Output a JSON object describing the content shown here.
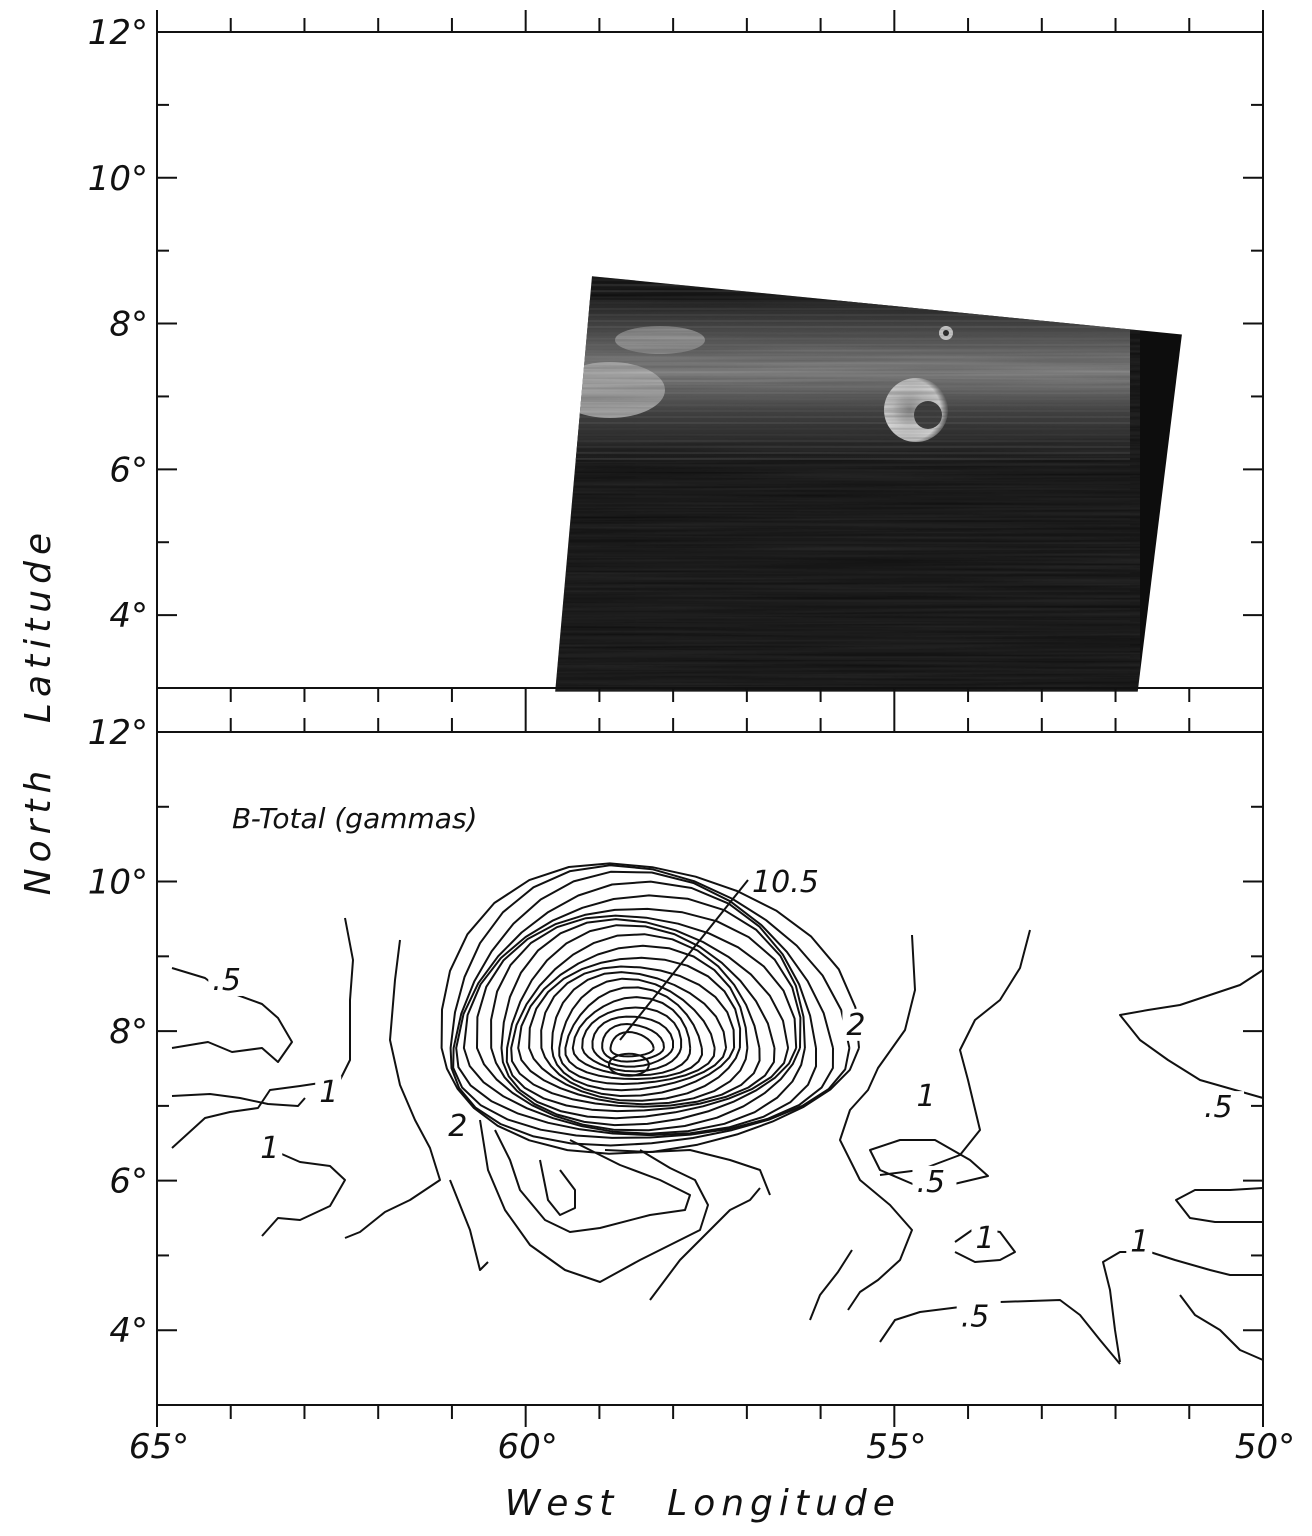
{
  "chart_data": [
    {
      "type": "image",
      "panel": "top",
      "xlim": [
        65,
        50
      ],
      "ylim": [
        3,
        12
      ],
      "y_ticks": [
        "12°",
        "10°",
        "8°",
        "6°",
        "4°"
      ],
      "image_footprint_deg": {
        "top_left": [
          59.1,
          8.65
        ],
        "top_right": [
          51.1,
          7.85
        ],
        "bottom_right": [
          51.7,
          2.95
        ],
        "bottom_left": [
          59.6,
          2.95
        ]
      },
      "colors": {
        "image_dark": "#0d0d0d",
        "image_bright": "#e8e8e8"
      }
    },
    {
      "type": "contour",
      "panel": "bottom",
      "title": "B-Total (gammas)",
      "xlim": [
        65,
        50
      ],
      "ylim": [
        3,
        12
      ],
      "x_ticks": [
        "65°",
        "60°",
        "55°",
        "50°"
      ],
      "y_ticks": [
        "12°",
        "10°",
        "8°",
        "6°",
        "4°"
      ],
      "peak": {
        "label": "10.5",
        "lon": 58.6,
        "lat": 7.55
      },
      "contour_labels": [
        {
          "text": ".5",
          "lon": 64.25,
          "lat": 8.55
        },
        {
          "text": "1",
          "lon": 62.8,
          "lat": 7.05
        },
        {
          "text": "1",
          "lon": 63.6,
          "lat": 6.3
        },
        {
          "text": "2",
          "lon": 61.05,
          "lat": 6.6
        },
        {
          "text": "2",
          "lon": 55.65,
          "lat": 7.95
        },
        {
          "text": "1",
          "lon": 54.7,
          "lat": 7.0
        },
        {
          "text": ".5",
          "lon": 54.7,
          "lat": 5.85
        },
        {
          "text": "1",
          "lon": 53.9,
          "lat": 5.1
        },
        {
          "text": ".5",
          "lon": 54.1,
          "lat": 4.05
        },
        {
          "text": ".5",
          "lon": 50.8,
          "lat": 6.85
        },
        {
          "text": "1",
          "lon": 51.8,
          "lat": 5.05
        }
      ]
    }
  ],
  "axes": {
    "y_title_left": "Latitude",
    "y_title_right": "North",
    "x_title_left": "West",
    "x_title_right": "Longitude"
  }
}
